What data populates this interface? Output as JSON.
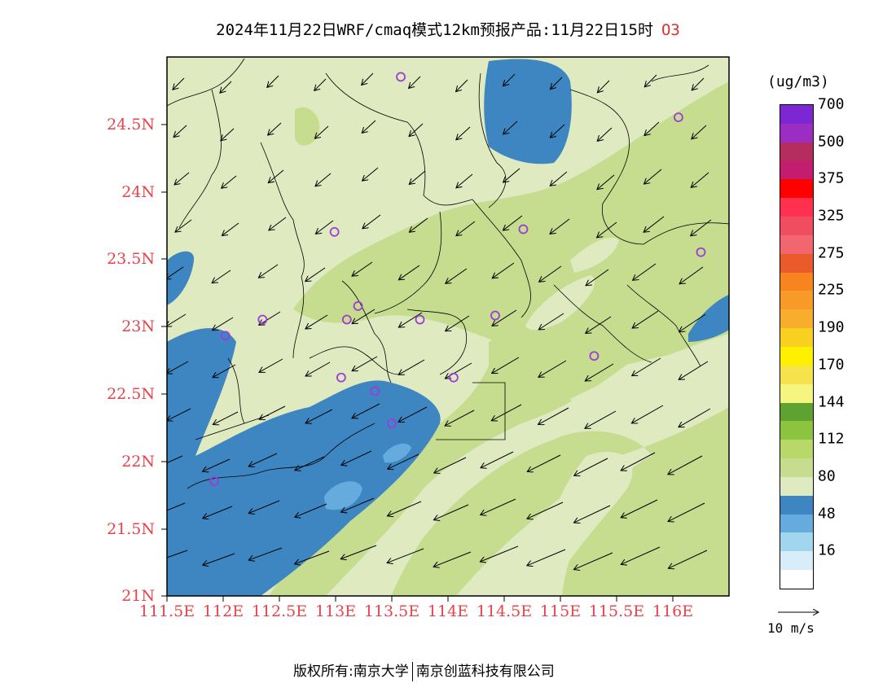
{
  "title": "2024年11月22日WRF/cmaq模式12km预报产品:11月22日15时",
  "pollutant": "O3",
  "unit_label": "(ug/m3)",
  "wind_scale_label": "10 m/s",
  "footer": {
    "left": "版权所有:南京大学",
    "right": "南京创蓝科技有限公司"
  },
  "lat_labels": [
    "24.5N",
    "24N",
    "23.5N",
    "23N",
    "22.5N",
    "22N",
    "21.5N",
    "21N"
  ],
  "lon_labels": [
    "111.5E",
    "112E",
    "112.5E",
    "113E",
    "113.5E",
    "114E",
    "114.5E",
    "115E",
    "115.5E",
    "116E"
  ],
  "colorbar": {
    "colors": [
      "#ffffff",
      "#d7eef8",
      "#a2d6ef",
      "#65abdd",
      "#3d86c2",
      "#dfeac0",
      "#c6dc8e",
      "#b8d86a",
      "#8cc442",
      "#5ea332",
      "#f5f580",
      "#f6e34c",
      "#fff000",
      "#fad020",
      "#f9ad2c",
      "#f89a28",
      "#f7841e",
      "#ea5a2b",
      "#f26670",
      "#f04d60",
      "#ff3050",
      "#ff0000",
      "#c41c6e",
      "#b52d5e",
      "#9b2dc2",
      "#7d26d3"
    ],
    "labels": [
      "16",
      "48",
      "80",
      "112",
      "144",
      "170",
      "190",
      "225",
      "275",
      "325",
      "375",
      "500",
      "700"
    ]
  },
  "colors": {
    "axis_label": "#e8434a",
    "station": "#9b3dd6",
    "ocean_low": "#3d86c2",
    "light": "#dfeac0",
    "mid": "#c6dc8e"
  },
  "stations": [
    {
      "lon": 113.58,
      "lat": 24.85
    },
    {
      "lon": 116.05,
      "lat": 24.55
    },
    {
      "lon": 112.99,
      "lat": 23.7
    },
    {
      "lon": 114.67,
      "lat": 23.72
    },
    {
      "lon": 116.25,
      "lat": 23.55
    },
    {
      "lon": 113.2,
      "lat": 23.15
    },
    {
      "lon": 112.35,
      "lat": 23.05
    },
    {
      "lon": 113.1,
      "lat": 23.05
    },
    {
      "lon": 113.75,
      "lat": 23.05
    },
    {
      "lon": 114.42,
      "lat": 23.08
    },
    {
      "lon": 112.02,
      "lat": 22.93
    },
    {
      "lon": 113.05,
      "lat": 22.62
    },
    {
      "lon": 114.05,
      "lat": 22.62
    },
    {
      "lon": 115.3,
      "lat": 22.78
    },
    {
      "lon": 113.35,
      "lat": 22.52
    },
    {
      "lon": 113.5,
      "lat": 22.28
    },
    {
      "lon": 111.92,
      "lat": 21.85
    }
  ]
}
